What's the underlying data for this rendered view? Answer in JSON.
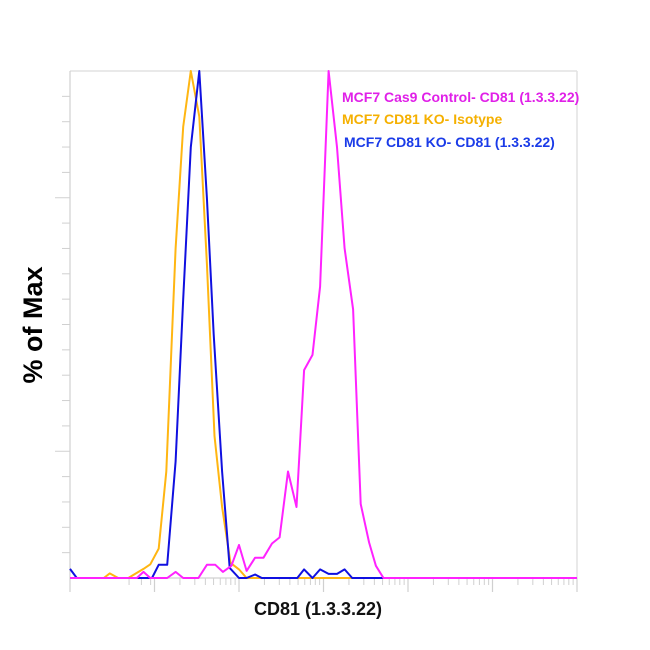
{
  "chart_data": {
    "type": "line",
    "title": "",
    "xlabel": "CD81 (1.3.3.22)",
    "ylabel": "% of Max",
    "x_scale": "log",
    "x_units_note_free": true,
    "xlim_decades": [
      0,
      6
    ],
    "ylim": [
      0,
      100
    ],
    "x_tick_labels_shown": false,
    "y_tick_labels_shown": false,
    "grid": false,
    "legend_position": "top-right",
    "series": [
      {
        "name": "MCF7 Cas9 Control- CD81 (1.3.3.22)",
        "color": "#ff22ff",
        "label_color": "#e020e8",
        "x": [
          0,
          0.79,
          0.87,
          0.95,
          1.15,
          1.25,
          1.34,
          1.52,
          1.62,
          1.72,
          1.81,
          1.91,
          2.0,
          2.09,
          2.19,
          2.29,
          2.39,
          2.48,
          2.58,
          2.68,
          2.77,
          2.87,
          2.96,
          3.06,
          3.16,
          3.25,
          3.35,
          3.44,
          3.54,
          3.62,
          3.71,
          6.0
        ],
        "y": [
          0,
          0,
          1.2,
          0,
          0,
          1.2,
          0,
          0,
          2.6,
          2.6,
          1.2,
          2.4,
          6.5,
          1.4,
          4,
          4,
          6.8,
          8,
          21,
          14,
          41,
          44,
          57.5,
          100,
          85,
          65,
          53,
          14.6,
          7,
          2.4,
          0,
          0
        ]
      },
      {
        "name": "MCF7 CD81 KO- Isotype",
        "color": "#ffb612",
        "label_color": "#f5b000",
        "x": [
          0,
          0.4,
          0.47,
          0.57,
          0.69,
          0.79,
          0.87,
          0.95,
          1.05,
          1.14,
          1.25,
          1.34,
          1.43,
          1.53,
          1.62,
          1.71,
          1.8,
          1.9,
          2.0,
          2.09,
          6.0
        ],
        "y": [
          0,
          0,
          0.9,
          0,
          0,
          1,
          1.8,
          2.7,
          5.8,
          21,
          65,
          89,
          100,
          91,
          62,
          28,
          14,
          3,
          1.7,
          0,
          0
        ]
      },
      {
        "name": "MCF7 CD81 KO- CD81 (1.3.3.22)",
        "color": "#1010e0",
        "label_color": "#1a3be8",
        "x": [
          0,
          0.08,
          0.97,
          1.05,
          1.15,
          1.25,
          1.34,
          1.43,
          1.53,
          1.62,
          1.7,
          1.8,
          1.89,
          2.0,
          2.09,
          2.19,
          2.27,
          2.69,
          2.77,
          2.87,
          2.96,
          3.06,
          3.16,
          3.25,
          3.34,
          6.0
        ],
        "y": [
          1.8,
          0,
          0,
          2.6,
          2.6,
          23,
          55,
          85,
          100,
          75,
          48,
          21,
          2,
          0,
          0,
          0.7,
          0,
          0,
          1.7,
          0,
          1.7,
          0.8,
          0.8,
          1.7,
          0,
          0
        ]
      }
    ]
  }
}
